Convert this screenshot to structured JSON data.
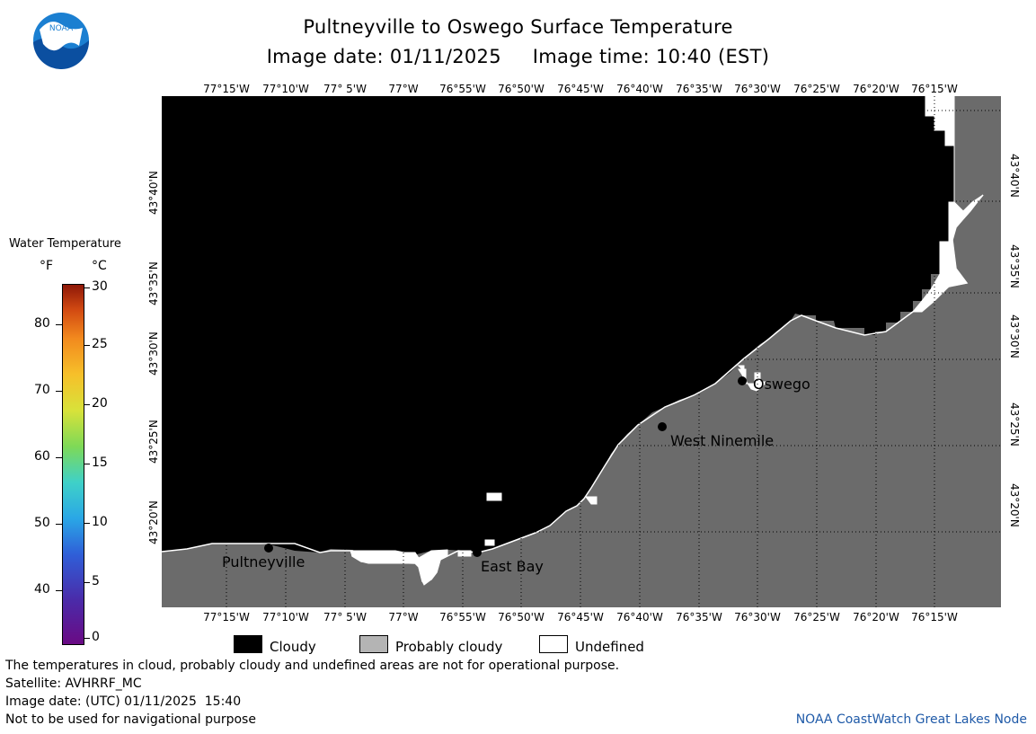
{
  "header": {
    "title": "Pultneyville to Oswego Surface Temperature",
    "subtitle": "Image date: 01/11/2025     Image time: 10:40 (EST)"
  },
  "logo": {
    "text": "NOAA",
    "icon": "noaa-logo-icon"
  },
  "map": {
    "longitude_labels": [
      "77°15'W",
      "77°10'W",
      "77° 5'W",
      "77°W",
      "76°55'W",
      "76°50'W",
      "76°45'W",
      "76°40'W",
      "76°35'W",
      "76°30'W",
      "76°25'W",
      "76°20'W",
      "76°15'W"
    ],
    "latitude_labels": [
      "43°40'N",
      "43°35'N",
      "43°30'N",
      "43°25'N",
      "43°20'N"
    ],
    "places": [
      {
        "name": "Pultneyville"
      },
      {
        "name": "East Bay"
      },
      {
        "name": "West Ninemile"
      },
      {
        "name": "Oswego"
      }
    ],
    "colors": {
      "cloud": "#000000",
      "land": "#6b6b6b",
      "undefined": "#ffffff",
      "grid": "#000000"
    }
  },
  "color_scale": {
    "title": "Water Temperature",
    "unit_f": "°F",
    "unit_c": "°C",
    "fahrenheit_ticks": [
      "80",
      "70",
      "60",
      "50",
      "40"
    ],
    "celsius_ticks": [
      "30",
      "25",
      "20",
      "15",
      "10",
      "5",
      "0"
    ]
  },
  "legend": {
    "items": [
      {
        "label": "Cloudy",
        "color": "#000000"
      },
      {
        "label": "Probably cloudy",
        "color": "#b4b4b4"
      },
      {
        "label": "Undefined",
        "color": "#ffffff"
      }
    ]
  },
  "footer": {
    "disclaimer": "The temperatures in cloud, probably cloudy and undefined areas are not for operational purpose.",
    "satellite": "Satellite: AVHRRF_MC",
    "image_date_utc": "Image date: (UTC) 01/11/2025  15:40",
    "nav_warning": "Not to be used for navigational purpose",
    "credit": "NOAA CoastWatch Great Lakes Node"
  }
}
